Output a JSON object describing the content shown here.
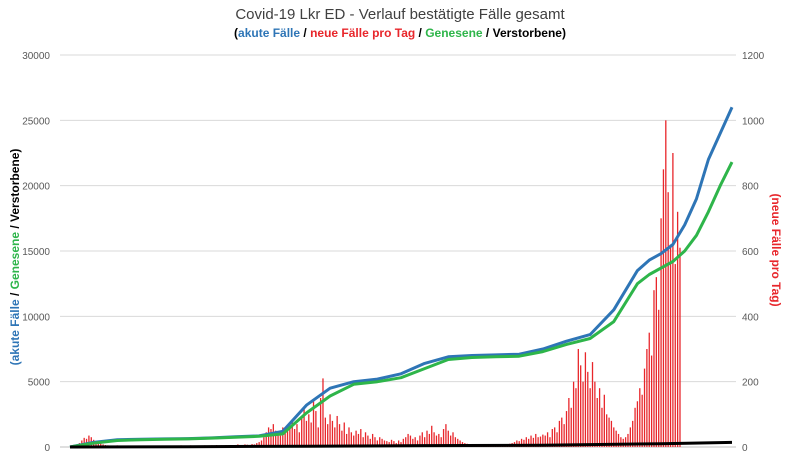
{
  "chart_data": {
    "type": "line",
    "title": "Covid-19 Lkr ED - Verlauf bestätigte Fälle gesamt",
    "subtitle_parts": [
      {
        "text": "(",
        "color": "#000000"
      },
      {
        "text": "akute Fälle",
        "color": "#2E75B6"
      },
      {
        "text": " / ",
        "color": "#000000"
      },
      {
        "text": "neue Fälle pro Tag",
        "color": "#E8262B"
      },
      {
        "text": " / ",
        "color": "#000000"
      },
      {
        "text": "Genesene",
        "color": "#2EB54A"
      },
      {
        "text": " / ",
        "color": "#000000"
      },
      {
        "text": "Verstorbene",
        "color": "#000000"
      },
      {
        "text": ")",
        "color": "#000000"
      }
    ],
    "ylabel_left_parts": [
      {
        "text": "(akute Fälle",
        "color": "#2E75B6"
      },
      {
        "text": " / ",
        "color": "#000000"
      },
      {
        "text": "Genesene",
        "color": "#2EB54A"
      },
      {
        "text": " / Verstorbene)",
        "color": "#000000"
      }
    ],
    "ylabel_right": "(neue Fälle pro Tag)",
    "ylim_left": [
      0,
      30000
    ],
    "ylim_right": [
      0,
      1200
    ],
    "yticks_left": [
      "0",
      "5000",
      "10000",
      "15000",
      "20000",
      "25000",
      "30000"
    ],
    "yticks_right": [
      "0",
      "200",
      "400",
      "600",
      "800",
      "1000",
      "1200"
    ],
    "grid": true,
    "x_range": [
      0,
      280
    ],
    "series": [
      {
        "name": "akute Fälle",
        "axis": "left",
        "color": "#2E75B6",
        "x": [
          0,
          10,
          20,
          30,
          40,
          50,
          60,
          70,
          80,
          90,
          100,
          110,
          120,
          130,
          140,
          150,
          160,
          170,
          180,
          190,
          200,
          210,
          220,
          230,
          240,
          245,
          250,
          255,
          260,
          265,
          270,
          275,
          280
        ],
        "y": [
          0,
          350,
          550,
          600,
          620,
          640,
          700,
          780,
          850,
          1200,
          3200,
          4500,
          5000,
          5200,
          5600,
          6400,
          6900,
          7000,
          7050,
          7100,
          7500,
          8100,
          8600,
          10500,
          13500,
          14300,
          14800,
          15500,
          17000,
          19000,
          22000,
          24000,
          26000
        ]
      },
      {
        "name": "Genesene",
        "axis": "left",
        "color": "#2EB54A",
        "x": [
          0,
          10,
          20,
          30,
          40,
          50,
          60,
          70,
          80,
          90,
          100,
          110,
          120,
          130,
          140,
          150,
          160,
          170,
          180,
          190,
          200,
          210,
          220,
          230,
          240,
          245,
          250,
          255,
          260,
          265,
          270,
          275,
          280
        ],
        "y": [
          0,
          300,
          500,
          560,
          600,
          620,
          680,
          750,
          820,
          1000,
          2600,
          3900,
          4800,
          5000,
          5300,
          6000,
          6700,
          6850,
          6900,
          6950,
          7300,
          7850,
          8300,
          9600,
          12500,
          13200,
          13700,
          14200,
          15000,
          16200,
          18000,
          20000,
          21800
        ]
      },
      {
        "name": "Verstorbene",
        "axis": "left",
        "color": "#000000",
        "x": [
          0,
          50,
          100,
          150,
          200,
          250,
          280
        ],
        "y": [
          0,
          20,
          60,
          110,
          140,
          250,
          350
        ]
      }
    ],
    "bars": {
      "name": "neue Fälle pro Tag",
      "axis": "right",
      "color": "#E8262B",
      "x_start": 3,
      "values": [
        5,
        12,
        20,
        28,
        25,
        35,
        30,
        22,
        18,
        15,
        12,
        8,
        6,
        5,
        4,
        3,
        4,
        5,
        3,
        2,
        3,
        4,
        2,
        3,
        2,
        2,
        3,
        2,
        3,
        4,
        2,
        3,
        2,
        4,
        3,
        2,
        3,
        4,
        3,
        2,
        3,
        4,
        3,
        2,
        5,
        3,
        4,
        3,
        5,
        4,
        3,
        2,
        4,
        3,
        5,
        4,
        3,
        5,
        4,
        6,
        4,
        5,
        4,
        6,
        5,
        4,
        6,
        5,
        8,
        6,
        5,
        8,
        7,
        6,
        9,
        8,
        12,
        15,
        20,
        30,
        45,
        60,
        55,
        70,
        50,
        40,
        35,
        60,
        45,
        50,
        65,
        80,
        55,
        70,
        45,
        90,
        120,
        80,
        100,
        75,
        140,
        110,
        60,
        150,
        210,
        90,
        70,
        100,
        80,
        60,
        95,
        70,
        50,
        75,
        40,
        60,
        45,
        35,
        50,
        40,
        55,
        30,
        45,
        35,
        25,
        40,
        30,
        20,
        30,
        25,
        20,
        18,
        15,
        22,
        18,
        12,
        20,
        15,
        25,
        30,
        40,
        35,
        25,
        30,
        20,
        35,
        45,
        30,
        50,
        40,
        65,
        45,
        35,
        40,
        30,
        55,
        70,
        50,
        35,
        45,
        30,
        25,
        20,
        15,
        12,
        10,
        8,
        6,
        5,
        5,
        4,
        4,
        3,
        3,
        3,
        2,
        2,
        3,
        3,
        4,
        5,
        6,
        8,
        10,
        12,
        15,
        20,
        18,
        25,
        22,
        30,
        25,
        35,
        28,
        40,
        30,
        32,
        38,
        35,
        45,
        30,
        55,
        60,
        45,
        80,
        90,
        70,
        110,
        150,
        120,
        200,
        180,
        300,
        250,
        200,
        290,
        230,
        180,
        260,
        200,
        150,
        180,
        120,
        160,
        100,
        90,
        80,
        60,
        50,
        40,
        30,
        25,
        30,
        40,
        60,
        80,
        120,
        140,
        180,
        160,
        240,
        300,
        350,
        280,
        480,
        520,
        420,
        700,
        850,
        1000,
        780,
        620,
        900,
        560,
        720,
        610
      ],
      "legend_visible": false
    }
  }
}
